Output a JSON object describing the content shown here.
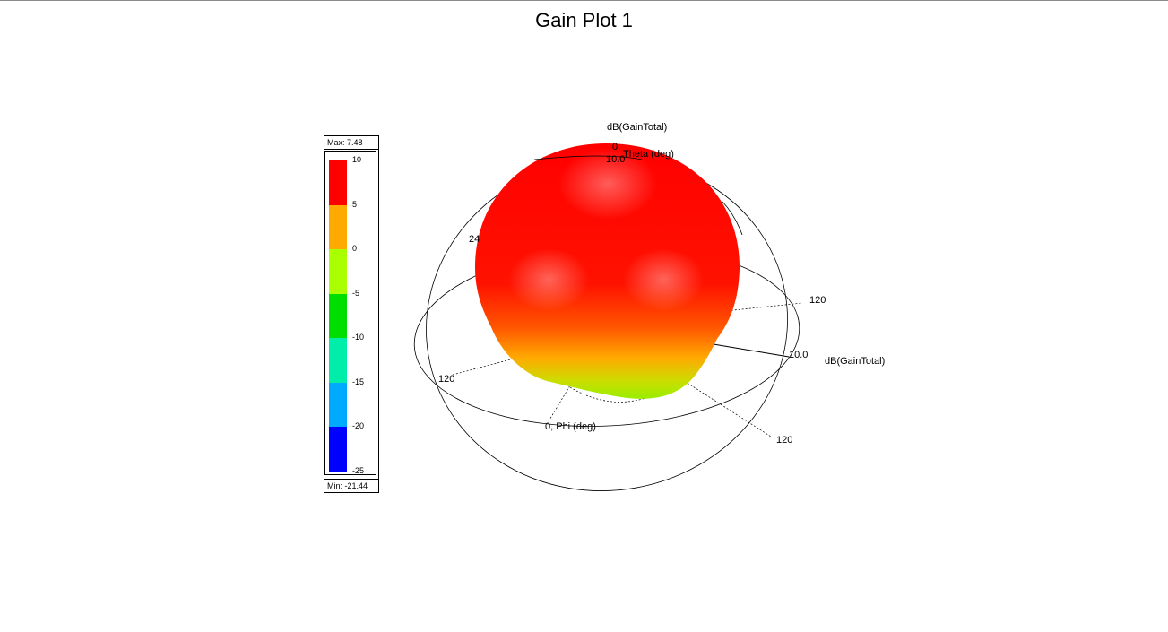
{
  "chart_data": {
    "type": "3d-polar-surface",
    "title": "Gain Plot 1",
    "quantity": "dB(GainTotal)",
    "theta_axis_label": "Theta (deg)",
    "phi_axis_label": "Phi (deg)",
    "legend": {
      "max_label": "Max: 7.48",
      "min_label": "Min: -21.44",
      "max": 7.48,
      "min": -21.44,
      "ticks": [
        "10",
        "5",
        "0",
        "-5",
        "-10",
        "-15",
        "-20",
        "-25"
      ],
      "bands": [
        {
          "from": 10,
          "to": 5,
          "color": "#ff0000"
        },
        {
          "from": 5,
          "to": 0,
          "color": "#ffaa00"
        },
        {
          "from": 0,
          "to": -5,
          "color": "#aaff00"
        },
        {
          "from": -5,
          "to": -10,
          "color": "#00dd00"
        },
        {
          "from": -10,
          "to": -15,
          "color": "#00eeaa"
        },
        {
          "from": -15,
          "to": -20,
          "color": "#00aaff"
        },
        {
          "from": -20,
          "to": -25,
          "color": "#0000ff"
        }
      ]
    },
    "axis_labels": {
      "dB_top": "dB(GainTotal)",
      "zero_top": "0",
      "ring_value_top": "10.0",
      "theta_label": "Theta (deg)",
      "label_24": "24",
      "label_120_right": "120",
      "ring_value_right": "10.0",
      "dB_right": "dB(GainTotal)",
      "label_120_left": "120",
      "phi_label": "0, Phi (deg)",
      "label_120_bottom": "120"
    }
  }
}
